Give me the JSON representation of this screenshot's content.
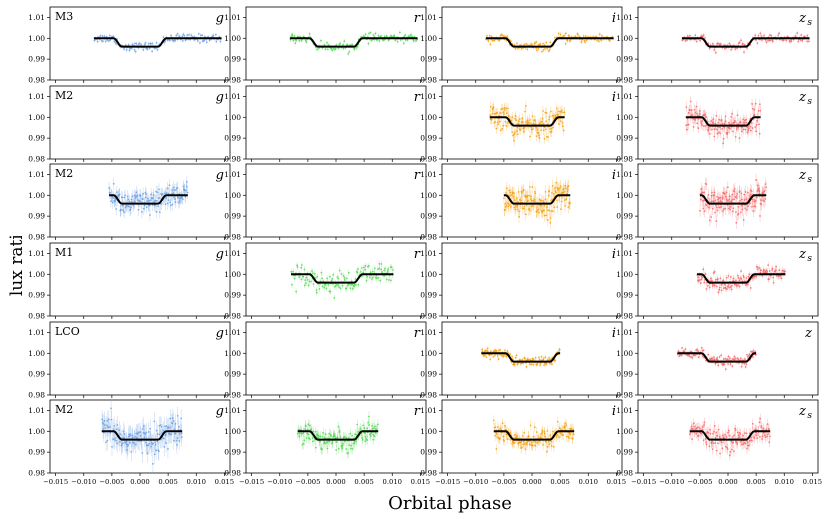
{
  "figure": {
    "xlabel": "Orbital phase",
    "ylabel": "Flux ratio"
  },
  "chart_data": {
    "type": "scatter",
    "xlim": [
      -0.016,
      0.016
    ],
    "ylim": [
      0.98,
      1.015
    ],
    "xticks": [
      -0.015,
      -0.01,
      -0.005,
      0.0,
      0.005,
      0.01,
      0.015
    ],
    "xtick_labels": [
      "−0.015",
      "−0.010",
      "−0.005",
      "0.000",
      "0.005",
      "0.010",
      "0.015"
    ],
    "yticks": [
      0.98,
      0.99,
      1.0,
      1.01
    ],
    "ytick_labels": [
      "0.98",
      "0.99",
      "1.00",
      "1.01"
    ],
    "model": {
      "transit_depth": 0.004,
      "ingress_start": 0.0047,
      "ingress_end": 0.0032
    },
    "band_colors": {
      "g": "#6fa0e0",
      "r": "#55d655",
      "i": "#f5a010",
      "z": "#f46a6a"
    },
    "rows": [
      {
        "instrument": "M3",
        "panels": [
          {
            "band": "g",
            "band_label": "g",
            "sub": "",
            "range": [
              -0.0082,
              0.0145
            ],
            "scatter": 0.001,
            "errbar": 0.001
          },
          {
            "band": "r",
            "band_label": "r",
            "sub": "",
            "range": [
              -0.0082,
              0.0145
            ],
            "scatter": 0.001,
            "errbar": 0.001
          },
          {
            "band": "i",
            "band_label": "i",
            "sub": "",
            "range": [
              -0.0082,
              0.0145
            ],
            "scatter": 0.001,
            "errbar": 0.001
          },
          {
            "band": "z",
            "band_label": "z",
            "sub": "s",
            "range": [
              -0.0082,
              0.0145
            ],
            "scatter": 0.001,
            "errbar": 0.001
          }
        ]
      },
      {
        "instrument": "M2",
        "panels": [
          {
            "band": "g",
            "band_label": "g",
            "sub": "",
            "range": null
          },
          {
            "band": "r",
            "band_label": "r",
            "sub": "",
            "range": null
          },
          {
            "band": "i",
            "band_label": "i",
            "sub": "",
            "range": [
              -0.0075,
              0.0058
            ],
            "scatter": 0.003,
            "errbar": 0.0025
          },
          {
            "band": "z",
            "band_label": "z",
            "sub": "s",
            "range": [
              -0.0075,
              0.0058
            ],
            "scatter": 0.003,
            "errbar": 0.0025
          }
        ]
      },
      {
        "instrument": "M2",
        "panels": [
          {
            "band": "g",
            "band_label": "g",
            "sub": "",
            "range": [
              -0.0055,
              0.0085
            ],
            "scatter": 0.003,
            "errbar": 0.003
          },
          {
            "band": "r",
            "band_label": "r",
            "sub": "",
            "range": null
          },
          {
            "band": "i",
            "band_label": "i",
            "sub": "",
            "range": [
              -0.005,
              0.0068
            ],
            "scatter": 0.0035,
            "errbar": 0.003
          },
          {
            "band": "z",
            "band_label": "z",
            "sub": "s",
            "range": [
              -0.005,
              0.0068
            ],
            "scatter": 0.0035,
            "errbar": 0.003
          }
        ]
      },
      {
        "instrument": "M1",
        "panels": [
          {
            "band": "g",
            "band_label": "g",
            "sub": "",
            "range": null
          },
          {
            "band": "r",
            "band_label": "r",
            "sub": "",
            "range": [
              -0.008,
              0.0102
            ],
            "scatter": 0.0025,
            "errbar": 0.0015
          },
          {
            "band": "i",
            "band_label": "i",
            "sub": "",
            "range": null
          },
          {
            "band": "z",
            "band_label": "z",
            "sub": "s",
            "range": [
              -0.0055,
              0.0102
            ],
            "scatter": 0.002,
            "errbar": 0.0015
          }
        ]
      },
      {
        "instrument": "LCO",
        "panels": [
          {
            "band": "g",
            "band_label": "g",
            "sub": "",
            "range": null
          },
          {
            "band": "r",
            "band_label": "r",
            "sub": "",
            "range": null
          },
          {
            "band": "i",
            "band_label": "i",
            "sub": "",
            "range": [
              -0.009,
              0.005
            ],
            "scatter": 0.0012,
            "errbar": 0.001
          },
          {
            "band": "z",
            "band_label": "z",
            "sub": "",
            "range": [
              -0.009,
              0.005
            ],
            "scatter": 0.0012,
            "errbar": 0.001
          }
        ]
      },
      {
        "instrument": "M2",
        "panels": [
          {
            "band": "g",
            "band_label": "g",
            "sub": "",
            "range": [
              -0.0068,
              0.0075
            ],
            "scatter": 0.0035,
            "errbar": 0.0045
          },
          {
            "band": "r",
            "band_label": "r",
            "sub": "",
            "range": [
              -0.0068,
              0.0075
            ],
            "scatter": 0.0025,
            "errbar": 0.0025
          },
          {
            "band": "i",
            "band_label": "i",
            "sub": "",
            "range": [
              -0.0068,
              0.0075
            ],
            "scatter": 0.0025,
            "errbar": 0.0025
          },
          {
            "band": "z",
            "band_label": "z",
            "sub": "s",
            "range": [
              -0.0068,
              0.0075
            ],
            "scatter": 0.0025,
            "errbar": 0.0025
          }
        ]
      }
    ]
  }
}
